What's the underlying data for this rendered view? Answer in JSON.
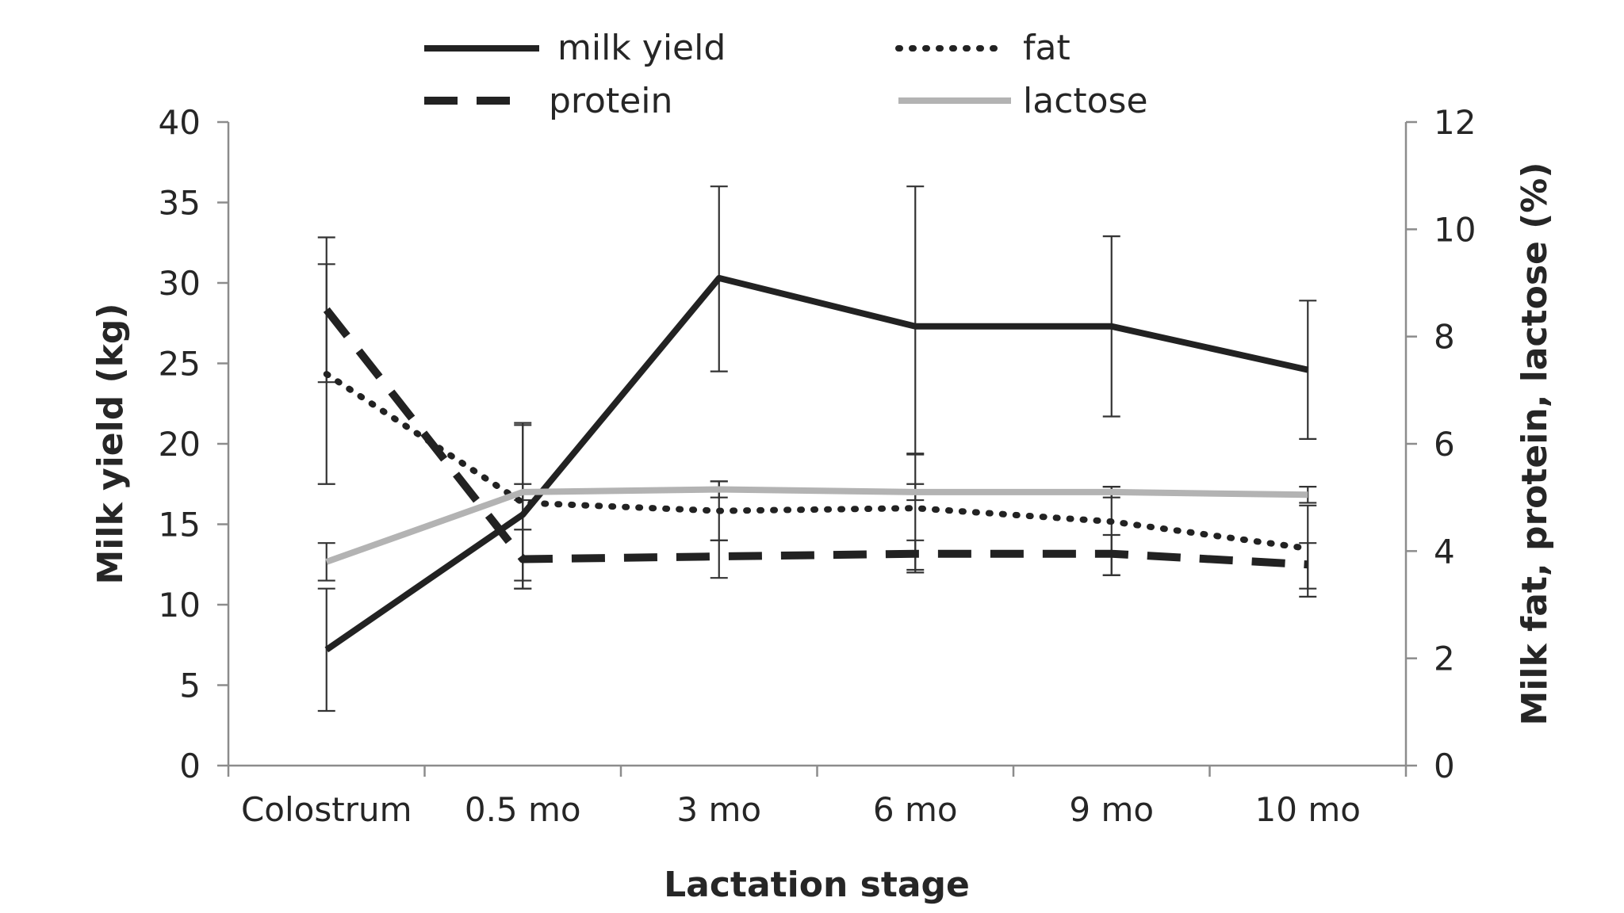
{
  "chart_data": {
    "type": "line",
    "categories": [
      "Colostrum",
      "0.5 mo",
      "3 mo",
      "6 mo",
      "9 mo",
      "10 mo"
    ],
    "xlabel": "Lactation stage",
    "ylabel_left": "Milk yield (kg)",
    "ylabel_right": "Milk fat, protein, lactose (%)",
    "ylim_left": [
      0,
      40
    ],
    "yticks_left": [
      "0",
      "5",
      "10",
      "15",
      "20",
      "25",
      "30",
      "35",
      "40"
    ],
    "ylim_right": [
      0,
      12
    ],
    "yticks_right": [
      "0",
      "2",
      "4",
      "6",
      "8",
      "10",
      "12"
    ],
    "grid": false,
    "legend_position": "top",
    "series": [
      {
        "name": "milk yield",
        "axis": "left",
        "style": "solid",
        "color": "#222222",
        "values": [
          7.2,
          15.6,
          30.3,
          27.3,
          27.3,
          24.6
        ],
        "error_low": [
          3.4,
          11.0,
          24.5,
          19.4,
          21.7,
          20.3
        ],
        "error_high": [
          11.0,
          21.3,
          36.0,
          36.0,
          32.9,
          28.9
        ]
      },
      {
        "name": "fat",
        "axis": "right",
        "style": "dotted",
        "color": "#222222",
        "values": [
          7.3,
          4.9,
          4.75,
          4.8,
          4.55,
          4.05
        ],
        "error_low": [
          5.25,
          3.45,
          4.2,
          3.65,
          3.55,
          3.15
        ],
        "error_high": [
          9.35,
          6.35,
          5.3,
          5.8,
          5.2,
          4.85
        ]
      },
      {
        "name": "protein",
        "axis": "right",
        "style": "dashed",
        "color": "#222222",
        "values": [
          8.5,
          3.85,
          3.9,
          3.95,
          3.95,
          3.75
        ],
        "error_low": [
          7.15,
          3.3,
          3.5,
          3.6,
          3.55,
          3.3
        ],
        "error_high": [
          9.85,
          4.4,
          4.2,
          4.2,
          4.3,
          4.15
        ]
      },
      {
        "name": "lactose",
        "axis": "right",
        "style": "solid",
        "color": "#b3b3b3",
        "values": [
          3.8,
          5.1,
          5.15,
          5.1,
          5.1,
          5.05
        ],
        "error_low": [
          3.45,
          4.95,
          5.0,
          4.95,
          5.0,
          4.9
        ],
        "error_high": [
          4.15,
          5.25,
          5.3,
          5.25,
          5.2,
          5.2
        ]
      }
    ]
  }
}
